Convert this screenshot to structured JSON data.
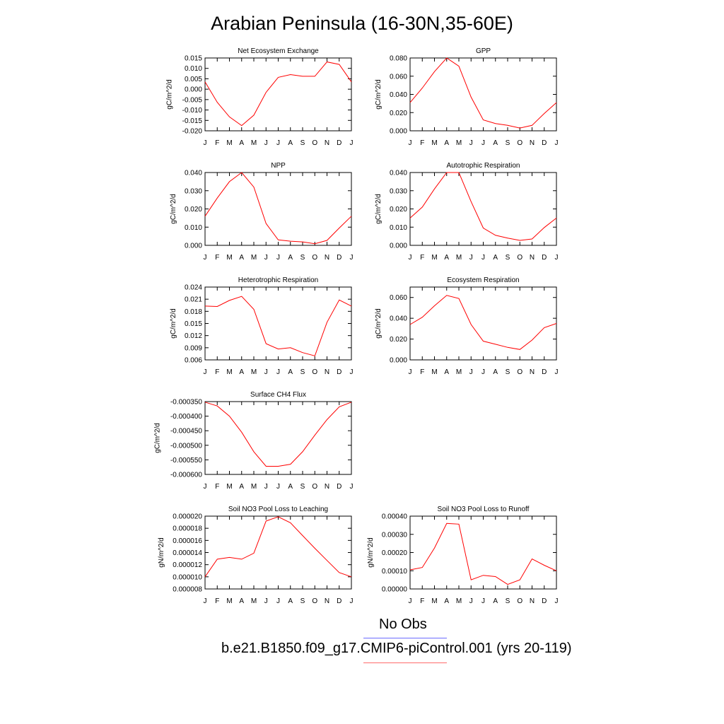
{
  "title": "Arabian Peninsula (16-30N,35-60E)",
  "legend": {
    "obs_label": "No Obs",
    "model_label": "b.e21.B1850.f09_g17.CMIP6-piControl.001 (yrs 20-119)",
    "obs_color": "#6b6bff",
    "model_color": "#ff6b6b"
  },
  "line_color": "#ff0000",
  "chart_data": [
    {
      "type": "line",
      "title": "Net Ecosystem Exchange",
      "ylabel": "gC/m^2/d",
      "categories": [
        "J",
        "F",
        "M",
        "A",
        "M",
        "J",
        "J",
        "A",
        "S",
        "O",
        "N",
        "D",
        "J"
      ],
      "ylim": [
        -0.02,
        0.015
      ],
      "yticks": [
        "0.015",
        "0.010",
        "0.005",
        "0.000",
        "-0.005",
        "-0.010",
        "-0.015",
        "-0.020"
      ],
      "ytick_values": [
        0.015,
        0.01,
        0.005,
        0.0,
        -0.005,
        -0.01,
        -0.015,
        -0.02
      ],
      "values": [
        0.0035,
        -0.0063,
        -0.0133,
        -0.0175,
        -0.0125,
        -0.0015,
        0.0057,
        0.007,
        0.0062,
        0.0062,
        0.0131,
        0.0119,
        0.0035
      ]
    },
    {
      "type": "line",
      "title": "GPP",
      "ylabel": "gC/m^2/d",
      "categories": [
        "J",
        "F",
        "M",
        "A",
        "M",
        "J",
        "J",
        "A",
        "S",
        "O",
        "N",
        "D",
        "J"
      ],
      "ylim": [
        0.0,
        0.08
      ],
      "yticks": [
        "0.080",
        "0.060",
        "0.040",
        "0.020",
        "0.000"
      ],
      "ytick_values": [
        0.08,
        0.06,
        0.04,
        0.02,
        0.0
      ],
      "values": [
        0.031,
        0.047,
        0.065,
        0.08,
        0.071,
        0.037,
        0.012,
        0.008,
        0.006,
        0.003,
        0.006,
        0.019,
        0.031
      ]
    },
    {
      "type": "line",
      "title": "NPP",
      "ylabel": "gC/m^2/d",
      "categories": [
        "J",
        "F",
        "M",
        "A",
        "M",
        "J",
        "J",
        "A",
        "S",
        "O",
        "N",
        "D",
        "J"
      ],
      "ylim": [
        0.0,
        0.04
      ],
      "yticks": [
        "0.040",
        "0.030",
        "0.020",
        "0.010",
        "0.000"
      ],
      "ytick_values": [
        0.04,
        0.03,
        0.02,
        0.01,
        0.0
      ],
      "values": [
        0.016,
        0.026,
        0.035,
        0.04,
        0.032,
        0.012,
        0.003,
        0.0023,
        0.0019,
        0.0009,
        0.0027,
        0.0095,
        0.016
      ]
    },
    {
      "type": "line",
      "title": "Autotrophic Respiration",
      "ylabel": "gC/m^2/d",
      "categories": [
        "J",
        "F",
        "M",
        "A",
        "M",
        "J",
        "J",
        "A",
        "S",
        "O",
        "N",
        "D",
        "J"
      ],
      "ylim": [
        0.0,
        0.04
      ],
      "yticks": [
        "0.040",
        "0.030",
        "0.020",
        "0.010",
        "0.000"
      ],
      "ytick_values": [
        0.04,
        0.03,
        0.02,
        0.01,
        0.0
      ],
      "values": [
        0.015,
        0.021,
        0.031,
        0.04,
        0.04,
        0.024,
        0.0095,
        0.0055,
        0.004,
        0.0027,
        0.0035,
        0.0098,
        0.015
      ]
    },
    {
      "type": "line",
      "title": "Heterotrophic Respiration",
      "ylabel": "gC/m^2/d",
      "categories": [
        "J",
        "F",
        "M",
        "A",
        "M",
        "J",
        "J",
        "A",
        "S",
        "O",
        "N",
        "D",
        "J"
      ],
      "ylim": [
        0.006,
        0.024
      ],
      "yticks": [
        "0.024",
        "0.021",
        "0.018",
        "0.015",
        "0.012",
        "0.009",
        "0.006"
      ],
      "ytick_values": [
        0.024,
        0.021,
        0.018,
        0.015,
        0.012,
        0.009,
        0.006
      ],
      "values": [
        0.0193,
        0.0192,
        0.0207,
        0.0217,
        0.0185,
        0.01,
        0.0087,
        0.009,
        0.0078,
        0.007,
        0.0153,
        0.0208,
        0.0193
      ]
    },
    {
      "type": "line",
      "title": "Ecosystem Respiration",
      "ylabel": "gC/m^2/d",
      "categories": [
        "J",
        "F",
        "M",
        "A",
        "M",
        "J",
        "J",
        "A",
        "S",
        "O",
        "N",
        "D",
        "J"
      ],
      "ylim": [
        0.0,
        0.07
      ],
      "yticks": [
        "0.060",
        "0.040",
        "0.020",
        "0.000"
      ],
      "ytick_values": [
        0.06,
        0.04,
        0.02,
        0.0
      ],
      "values": [
        0.034,
        0.041,
        0.052,
        0.062,
        0.059,
        0.034,
        0.018,
        0.015,
        0.012,
        0.01,
        0.019,
        0.031,
        0.035
      ]
    },
    {
      "type": "line",
      "title": "Surface CH4 Flux",
      "ylabel": "gC/m^2/d",
      "categories": [
        "J",
        "F",
        "M",
        "A",
        "M",
        "J",
        "J",
        "A",
        "S",
        "O",
        "N",
        "D",
        "J"
      ],
      "ylim": [
        -0.0006,
        -0.00035
      ],
      "yticks": [
        "-0.000350",
        "-0.000400",
        "-0.000450",
        "-0.000500",
        "-0.000550",
        "-0.000600"
      ],
      "ytick_values": [
        -0.00035,
        -0.0004,
        -0.00045,
        -0.0005,
        -0.00055,
        -0.0006
      ],
      "values": [
        -0.000352,
        -0.000365,
        -0.0004,
        -0.000455,
        -0.000522,
        -0.000572,
        -0.000572,
        -0.000565,
        -0.000522,
        -0.000465,
        -0.000412,
        -0.000368,
        -0.000352
      ]
    },
    {
      "type": "line",
      "title": "Soil NO3 Pool Loss to Leaching",
      "ylabel": "gN/m^2/d",
      "categories": [
        "J",
        "F",
        "M",
        "A",
        "M",
        "J",
        "J",
        "A",
        "S",
        "O",
        "N",
        "D",
        "J"
      ],
      "ylim": [
        8e-06,
        2e-05
      ],
      "yticks": [
        "0.000020",
        "0.000018",
        "0.000016",
        "0.000014",
        "0.000012",
        "0.000010",
        "0.000008"
      ],
      "ytick_values": [
        2e-05,
        1.8e-05,
        1.6e-05,
        1.4e-05,
        1.2e-05,
        1e-05,
        8e-06
      ],
      "values": [
        1e-05,
        1.29e-05,
        1.32e-05,
        1.29e-05,
        1.39e-05,
        1.92e-05,
        1.99e-05,
        1.89e-05,
        1.68e-05,
        1.47e-05,
        1.27e-05,
        1.07e-05,
        1e-05
      ]
    },
    {
      "type": "line",
      "title": "Soil NO3 Pool Loss to Runoff",
      "ylabel": "gN/m^2/d",
      "categories": [
        "J",
        "F",
        "M",
        "A",
        "M",
        "J",
        "J",
        "A",
        "S",
        "O",
        "N",
        "D",
        "J"
      ],
      "ylim": [
        0.0,
        0.0004
      ],
      "yticks": [
        "0.00040",
        "0.00030",
        "0.00020",
        "0.00010",
        "0.00000"
      ],
      "ytick_values": [
        0.0004,
        0.0003,
        0.0002,
        0.0001,
        0.0
      ],
      "values": [
        0.000105,
        0.000118,
        0.000225,
        0.00036,
        0.000356,
        5e-05,
        7.5e-05,
        6.8e-05,
        2.5e-05,
        5e-05,
        0.000165,
        0.00013,
        0.0001
      ]
    }
  ]
}
